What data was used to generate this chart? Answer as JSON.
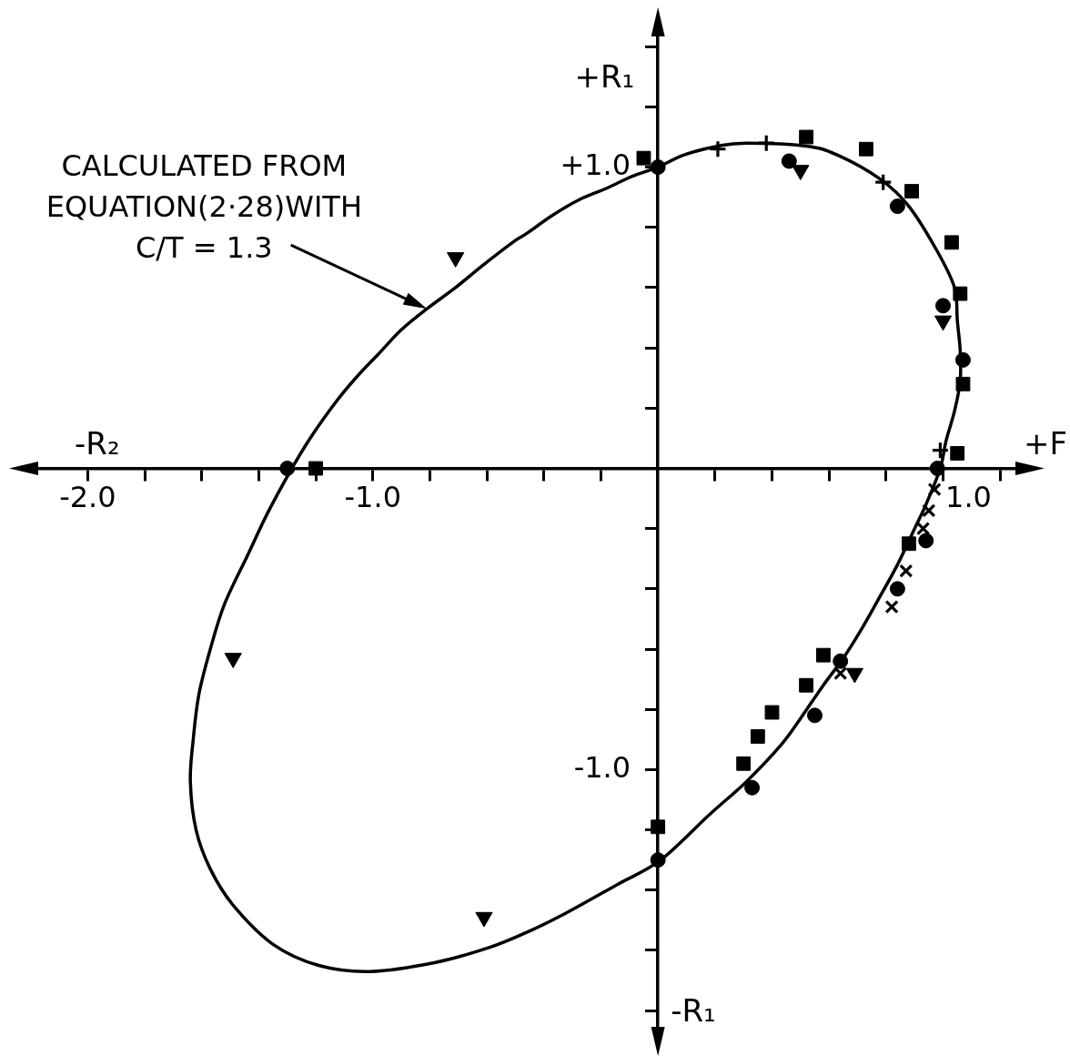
{
  "chart_data": {
    "type": "scatter",
    "xlabel": "+F",
    "ylabel": "+R₁",
    "annotations": [
      "-R₂",
      "-R₁",
      "CALCULATED FROM\nEQUATION(2·28)WITH\nC/T = 1.3"
    ],
    "xlim": [
      -2.18,
      1.26
    ],
    "ylim": [
      -1.86,
      1.44
    ],
    "xticks": [
      {
        "value": -2,
        "label": "-2.0"
      },
      {
        "value": -1.8,
        "label": null
      },
      {
        "value": -1.6,
        "label": null
      },
      {
        "value": -1.4,
        "label": null
      },
      {
        "value": -1.2,
        "label": null
      },
      {
        "value": -1,
        "label": "-1.0"
      },
      {
        "value": -0.8,
        "label": null
      },
      {
        "value": -0.6,
        "label": null
      },
      {
        "value": -0.4,
        "label": null
      },
      {
        "value": -0.2,
        "label": null
      },
      {
        "value": 0.2,
        "label": null
      },
      {
        "value": 0.4,
        "label": null
      },
      {
        "value": 0.6,
        "label": null
      },
      {
        "value": 0.8,
        "label": null
      },
      {
        "value": 1,
        "label": "1.0"
      },
      {
        "value": 1.2,
        "label": null
      }
    ],
    "yticks": [
      {
        "value": 1.4,
        "label": null
      },
      {
        "value": 1.2,
        "label": null
      },
      {
        "value": 1,
        "label": "+1.0"
      },
      {
        "value": 0.8,
        "label": null
      },
      {
        "value": 0.6,
        "label": null
      },
      {
        "value": 0.4,
        "label": null
      },
      {
        "value": 0.2,
        "label": null
      },
      {
        "value": -0.2,
        "label": null
      },
      {
        "value": -0.4,
        "label": null
      },
      {
        "value": -0.6,
        "label": null
      },
      {
        "value": -0.8,
        "label": null
      },
      {
        "value": -1,
        "label": "-1.0"
      },
      {
        "value": -1.2,
        "label": null
      },
      {
        "value": -1.4,
        "label": null
      },
      {
        "value": -1.6,
        "label": null
      },
      {
        "value": -1.8,
        "label": null
      }
    ],
    "series": [
      {
        "type": "scatter",
        "marker": "circle",
        "color": "#000000",
        "x": [
          0.0,
          0.46,
          0.84,
          1.0,
          1.07,
          0.98,
          0.94,
          0.84,
          0.64,
          0.55,
          0.33,
          0.0,
          -1.3
        ],
        "values": [
          1.0,
          1.02,
          0.87,
          0.54,
          0.36,
          0.0,
          -0.24,
          -0.4,
          -0.64,
          -0.82,
          -1.06,
          -1.3,
          0.0
        ]
      },
      {
        "type": "scatter",
        "marker": "square",
        "color": "#000000",
        "x": [
          -0.05,
          0.52,
          0.73,
          0.89,
          1.03,
          1.06,
          1.07,
          1.05,
          0.88,
          0.58,
          0.52,
          0.4,
          0.35,
          0.3,
          0.0,
          -1.2
        ],
        "values": [
          1.03,
          1.1,
          1.06,
          0.92,
          0.75,
          0.58,
          0.28,
          0.05,
          -0.25,
          -0.62,
          -0.72,
          -0.81,
          -0.89,
          -0.98,
          -1.19,
          0.0
        ]
      },
      {
        "type": "scatter",
        "marker": "triangle",
        "color": "#000000",
        "x": [
          -0.71,
          0.5,
          1.0,
          0.69,
          -1.49,
          -0.61
        ],
        "values": [
          0.7,
          0.99,
          0.49,
          -0.68,
          -0.63,
          -1.49
        ]
      },
      {
        "type": "scatter",
        "marker": "cross",
        "color": "#000000",
        "x": [
          0.21,
          0.38,
          0.79,
          0.99
        ],
        "values": [
          1.06,
          1.08,
          0.95,
          0.06
        ]
      },
      {
        "type": "scatter",
        "marker": "x",
        "color": "#000000",
        "x": [
          0.97,
          0.95,
          0.93,
          0.87,
          0.82,
          0.64
        ],
        "values": [
          -0.07,
          -0.14,
          -0.2,
          -0.34,
          -0.46,
          -0.68
        ]
      }
    ]
  }
}
